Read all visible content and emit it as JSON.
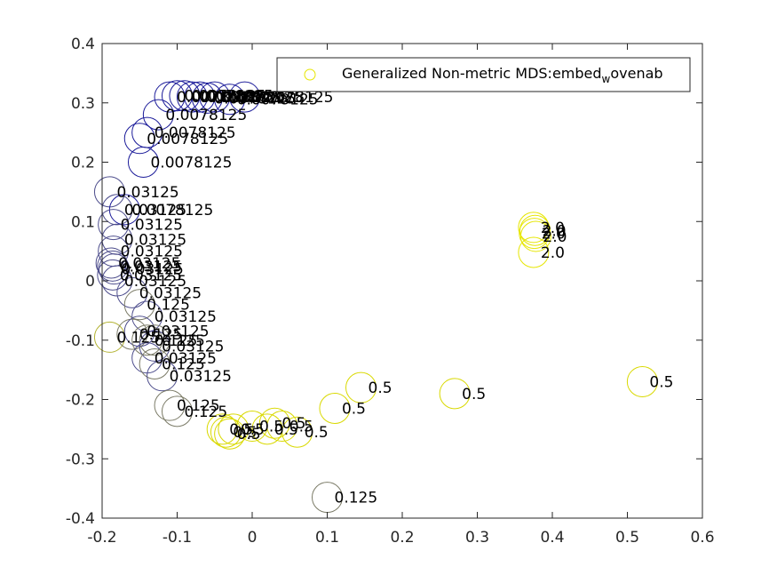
{
  "chart_data": {
    "type": "scatter",
    "xlim": [
      -0.2,
      0.6
    ],
    "ylim": [
      -0.4,
      0.4
    ],
    "xticks": [
      "-0.2",
      "-0.1",
      "0",
      "0.1",
      "0.2",
      "0.3",
      "0.4",
      "0.5",
      "0.6"
    ],
    "yticks": [
      "-0.4",
      "-0.3",
      "-0.2",
      "-0.1",
      "0",
      "0.1",
      "0.2",
      "0.3",
      "0.4"
    ],
    "grid": false,
    "legend": {
      "placement": "top-right",
      "label_main": "Generalized Non-metric MDS:embed",
      "label_sub": "w",
      "label_tail": "ovenab",
      "marker_color": "#e6e600"
    },
    "series": [
      {
        "color_note": "blue-to-yellow gradient by parameter value",
        "points": [
          {
            "x": -0.11,
            "y": 0.31,
            "label": "0.0078125",
            "color": "#1a1a99"
          },
          {
            "x": -0.1,
            "y": 0.312,
            "label": "0.0078125",
            "color": "#1a1a99"
          },
          {
            "x": -0.09,
            "y": 0.312,
            "label": "0.0078125",
            "color": "#1a1a99"
          },
          {
            "x": -0.08,
            "y": 0.31,
            "label": "0.0078125",
            "color": "#1a1a99"
          },
          {
            "x": -0.07,
            "y": 0.31,
            "label": "0.0078125",
            "color": "#1a1a99"
          },
          {
            "x": -0.06,
            "y": 0.308,
            "label": "0.0078125",
            "color": "#1a1a99"
          },
          {
            "x": -0.05,
            "y": 0.31,
            "label": "0.0078125",
            "color": "#1a1a99"
          },
          {
            "x": -0.03,
            "y": 0.306,
            "label": "0.0078125",
            "color": "#1a1a99"
          },
          {
            "x": -0.01,
            "y": 0.31,
            "label": "0.0078125",
            "color": "#1a1a99"
          },
          {
            "x": -0.125,
            "y": 0.28,
            "label": "0.0078125",
            "color": "#1a1a99"
          },
          {
            "x": -0.14,
            "y": 0.25,
            "label": "0.0078125",
            "color": "#1a1a99"
          },
          {
            "x": -0.15,
            "y": 0.24,
            "label": "0.0078125",
            "color": "#1a1a99"
          },
          {
            "x": -0.145,
            "y": 0.2,
            "label": "0.0078125",
            "color": "#1a1a99"
          },
          {
            "x": -0.19,
            "y": 0.15,
            "label": "0.03125",
            "color": "#4d4d8c"
          },
          {
            "x": -0.18,
            "y": 0.12,
            "label": "0.03125",
            "color": "#4d4d8c"
          },
          {
            "x": -0.17,
            "y": 0.12,
            "label": "0.0078125",
            "color": "#1a1a99"
          },
          {
            "x": -0.185,
            "y": 0.095,
            "label": "0.03125",
            "color": "#4d4d8c"
          },
          {
            "x": -0.18,
            "y": 0.07,
            "label": "0.03125",
            "color": "#4d4d8c"
          },
          {
            "x": -0.185,
            "y": 0.05,
            "label": "0.03125",
            "color": "#4d4d8c"
          },
          {
            "x": -0.188,
            "y": 0.03,
            "label": "0.03125",
            "color": "#4d4d8c"
          },
          {
            "x": -0.186,
            "y": 0.025,
            "label": "0.03125",
            "color": "#4d4d8c"
          },
          {
            "x": -0.184,
            "y": 0.02,
            "label": "0.03125",
            "color": "#4d4d8c"
          },
          {
            "x": -0.186,
            "y": 0.01,
            "label": "0.03125",
            "color": "#4d4d8c"
          },
          {
            "x": -0.18,
            "y": 0.0,
            "label": "0.03125",
            "color": "#4d4d8c"
          },
          {
            "x": -0.16,
            "y": -0.02,
            "label": "0.03125",
            "color": "#4d4d8c"
          },
          {
            "x": -0.15,
            "y": -0.04,
            "label": "0.125",
            "color": "#7a7a66"
          },
          {
            "x": -0.14,
            "y": -0.06,
            "label": "0.03125",
            "color": "#4d4d8c"
          },
          {
            "x": -0.19,
            "y": -0.095,
            "label": "0.125",
            "color": "#b3b333"
          },
          {
            "x": -0.16,
            "y": -0.09,
            "label": "0.125",
            "color": "#7a7a66"
          },
          {
            "x": -0.15,
            "y": -0.085,
            "label": "0.03125",
            "color": "#4d4d8c"
          },
          {
            "x": -0.14,
            "y": -0.1,
            "label": "0.125",
            "color": "#7a7a66"
          },
          {
            "x": -0.13,
            "y": -0.1,
            "label": "0.125",
            "color": "#7a7a66"
          },
          {
            "x": -0.13,
            "y": -0.11,
            "label": "0.03125",
            "color": "#4d4d8c"
          },
          {
            "x": -0.14,
            "y": -0.13,
            "label": "0.03125",
            "color": "#4d4d8c"
          },
          {
            "x": -0.13,
            "y": -0.14,
            "label": "0.125",
            "color": "#7a7a66"
          },
          {
            "x": -0.12,
            "y": -0.16,
            "label": "0.03125",
            "color": "#4d4d8c"
          },
          {
            "x": -0.11,
            "y": -0.21,
            "label": "0.125",
            "color": "#7a7a66"
          },
          {
            "x": -0.1,
            "y": -0.22,
            "label": "0.125",
            "color": "#7a7a66"
          },
          {
            "x": -0.04,
            "y": -0.25,
            "label": "0.5",
            "color": "#d9d900"
          },
          {
            "x": -0.035,
            "y": -0.255,
            "label": "0.5",
            "color": "#d9d900"
          },
          {
            "x": -0.03,
            "y": -0.258,
            "label": "0.5",
            "color": "#d9d900"
          },
          {
            "x": -0.025,
            "y": -0.25,
            "label": "0.5",
            "color": "#d9d900"
          },
          {
            "x": 0.0,
            "y": -0.245,
            "label": "0.5",
            "color": "#d9d900"
          },
          {
            "x": 0.02,
            "y": -0.25,
            "label": "0.5",
            "color": "#d9d900"
          },
          {
            "x": 0.03,
            "y": -0.24,
            "label": "0.5",
            "color": "#d9d900"
          },
          {
            "x": 0.04,
            "y": -0.245,
            "label": "0.5",
            "color": "#d9d900"
          },
          {
            "x": 0.06,
            "y": -0.255,
            "label": "0.5",
            "color": "#d9d900"
          },
          {
            "x": 0.1,
            "y": -0.365,
            "label": "0.125",
            "color": "#7a7a66"
          },
          {
            "x": 0.11,
            "y": -0.215,
            "label": "0.5",
            "color": "#d9d900"
          },
          {
            "x": 0.145,
            "y": -0.18,
            "label": "0.5",
            "color": "#d9d900"
          },
          {
            "x": 0.27,
            "y": -0.19,
            "label": "0.5",
            "color": "#d9d900"
          },
          {
            "x": 0.52,
            "y": -0.17,
            "label": "0.5",
            "color": "#d9d900"
          },
          {
            "x": 0.375,
            "y": 0.09,
            "label": "2.0",
            "color": "#e6e600"
          },
          {
            "x": 0.377,
            "y": 0.085,
            "label": "2.0",
            "color": "#e6e600"
          },
          {
            "x": 0.376,
            "y": 0.08,
            "label": "2.0",
            "color": "#e6e600"
          },
          {
            "x": 0.378,
            "y": 0.075,
            "label": "2.0",
            "color": "#e6e600"
          },
          {
            "x": 0.375,
            "y": 0.048,
            "label": "2.0",
            "color": "#e6e600"
          }
        ]
      }
    ]
  }
}
